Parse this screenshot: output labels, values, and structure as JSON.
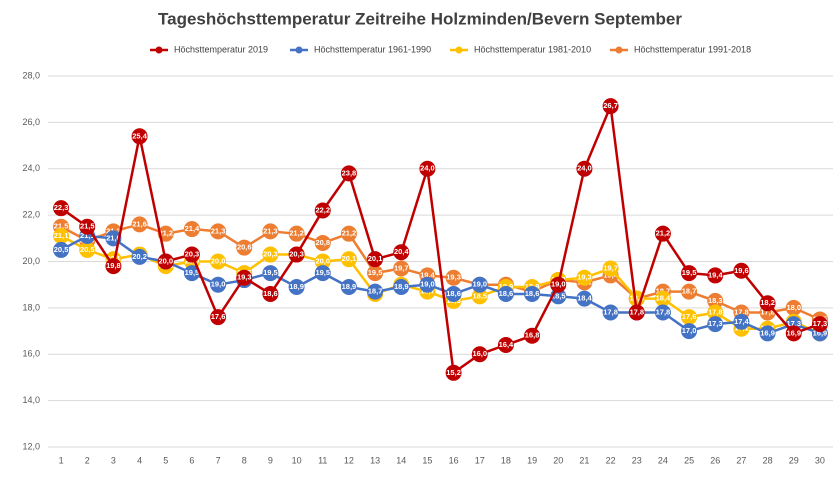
{
  "chart_data": {
    "type": "line",
    "title": "Tageshöchsttemperatur Zeitreihe Holzminden/Bevern September",
    "categories": [
      1,
      2,
      3,
      4,
      5,
      6,
      7,
      8,
      9,
      10,
      11,
      12,
      13,
      14,
      15,
      16,
      17,
      18,
      19,
      20,
      21,
      22,
      23,
      24,
      25,
      26,
      27,
      28,
      29,
      30
    ],
    "ylim": [
      12,
      28
    ],
    "yticks": [
      {
        "value": 12,
        "label": "12,0"
      },
      {
        "value": 14,
        "label": "14,0"
      },
      {
        "value": 16,
        "label": "16,0"
      },
      {
        "value": 18,
        "label": "18,0"
      },
      {
        "value": 20,
        "label": "20,0"
      },
      {
        "value": 22,
        "label": "22,0"
      },
      {
        "value": 24,
        "label": "24,0"
      },
      {
        "value": 26,
        "label": "26,0"
      },
      {
        "value": 28,
        "label": "28,0"
      }
    ],
    "grid": true,
    "legend": "top",
    "series": [
      {
        "name": "Höchsttemperatur 2019",
        "color": "#c00000",
        "values": [
          22.3,
          21.5,
          19.8,
          25.4,
          20.0,
          20.3,
          17.6,
          19.3,
          18.6,
          20.3,
          22.2,
          23.8,
          20.1,
          20.4,
          24.0,
          15.2,
          16.0,
          16.4,
          16.8,
          19.0,
          24.0,
          26.7,
          17.8,
          21.2,
          19.5,
          19.4,
          19.6,
          18.2,
          16.9,
          17.3
        ],
        "value_labels": [
          "22,3",
          "21,5",
          "19,8",
          "25,4",
          "20,0",
          "20,3",
          "17,6",
          "19,3",
          "18,6",
          "20,3",
          "22,2",
          "23,8",
          "20,1",
          "20,4",
          "24,0",
          "15,2",
          "16,0",
          "16,4",
          "16,8",
          "19,0",
          "24,0",
          "26,7",
          "17,8",
          "21,2",
          "19,5",
          "19,4",
          "19,6",
          "18,2",
          "16,9",
          "17,3"
        ]
      },
      {
        "name": "Höchsttemperatur 1961-1990",
        "color": "#4472c4",
        "values": [
          20.5,
          21.1,
          21.0,
          20.2,
          20.0,
          19.5,
          19.0,
          19.2,
          19.5,
          18.9,
          19.5,
          18.9,
          18.7,
          18.9,
          19.0,
          18.6,
          19.0,
          18.6,
          18.6,
          18.5,
          18.4,
          17.8,
          17.8,
          17.8,
          17.0,
          17.3,
          17.4,
          16.9,
          17.3,
          16.9
        ],
        "value_labels": [
          "20,5",
          "21,1",
          "21,0",
          "20,2",
          "20,0",
          "19,5",
          "19,0",
          "19,2",
          "19,5",
          "18,9",
          "19,5",
          "18,9",
          "18,7",
          "18,9",
          "19,0",
          "18,6",
          "19,0",
          "18,6",
          "18,6",
          "18,5",
          "18,4",
          "17,8",
          "17,8",
          "17,8",
          "17,0",
          "17,3",
          "17,4",
          "16,9",
          "17,3",
          "16,9"
        ]
      },
      {
        "name": "Höchsttemperatur 1981-2010",
        "color": "#ffc000",
        "values": [
          21.1,
          20.5,
          20.1,
          20.3,
          19.8,
          20.0,
          20.0,
          19.5,
          20.3,
          20.3,
          20.0,
          20.1,
          18.6,
          19.0,
          18.7,
          18.3,
          18.5,
          18.9,
          18.9,
          19.2,
          19.3,
          19.7,
          18.4,
          18.4,
          17.6,
          17.8,
          17.1,
          17.1,
          17.4,
          16.9
        ],
        "value_labels": [
          "21,1",
          "20,5",
          "20,1",
          "20,3",
          "19,8",
          "20,0",
          "20,0",
          "19,5",
          "20,3",
          "20,3",
          "20,0",
          "20,1",
          "18,6",
          "19,0",
          "18,7",
          "18,3",
          "18,5",
          "18,9",
          "18,9",
          "19,2",
          "19,3",
          "19,7",
          "18,4",
          "18,4",
          "17,6",
          "17,8",
          "17,1",
          "17,1",
          "17,4",
          "16,9"
        ]
      },
      {
        "name": "Höchsttemperatur 1991-2018",
        "color": "#ed7d31",
        "values": [
          21.5,
          20.9,
          21.3,
          21.6,
          21.2,
          21.4,
          21.3,
          20.6,
          21.3,
          21.2,
          20.8,
          21.2,
          19.5,
          19.7,
          19.4,
          19.3,
          19.0,
          19.0,
          18.7,
          19.2,
          19.1,
          19.4,
          18.4,
          18.7,
          18.7,
          18.3,
          17.8,
          17.8,
          18.0,
          17.5
        ],
        "value_labels": [
          "21,5",
          "20,9",
          "21,3",
          "21,6",
          "21,2",
          "21,4",
          "21,3",
          "20,6",
          "21,3",
          "21,2",
          "20,8",
          "21,2",
          "19,5",
          "19,7",
          "19,4",
          "19,3",
          "19,0",
          "19,0",
          "18,7",
          "19,2",
          "19,1",
          "19,4",
          "18,4",
          "18,7",
          "18,7",
          "18,3",
          "17,8",
          "17,8",
          "18,0",
          "17,5"
        ]
      }
    ]
  }
}
